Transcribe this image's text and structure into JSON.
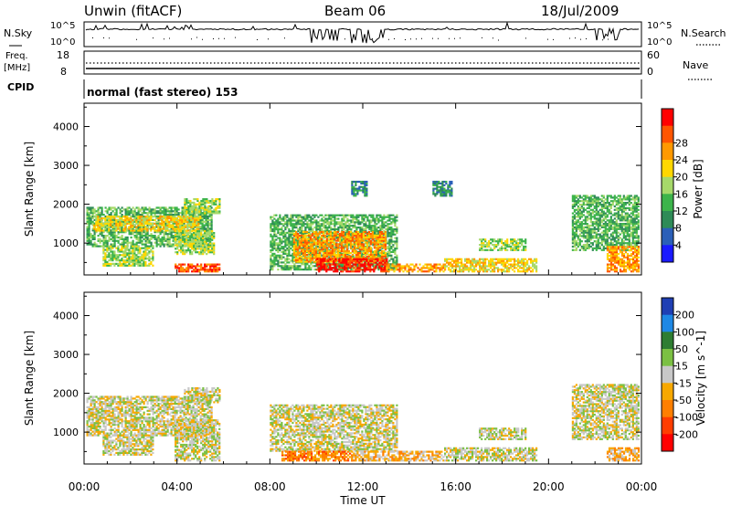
{
  "header": {
    "title": "Unwin (fitACF)",
    "beam": "Beam 06",
    "date": "18/Jul/2009"
  },
  "status_panels": {
    "nsky_label": "N.Sky",
    "nsearch_label": "N.Search",
    "noise_ticks_left": [
      "10^5",
      "10^0"
    ],
    "noise_ticks_right": [
      "10^5",
      "10^0"
    ],
    "freq_label": "Freq.",
    "freq_unit": "[MHz]",
    "freq_ticks": [
      "18",
      "8"
    ],
    "nave_label": "Nave",
    "nave_ticks": [
      "60",
      "0"
    ],
    "cpid_label": "CPID",
    "cpid_text": "normal (fast stereo) 153"
  },
  "chart_data": [
    {
      "type": "heatmap",
      "name": "power-panel",
      "ylabel": "Slant Range [km]",
      "ylim": [
        180,
        4600
      ],
      "yticks": [
        "1000",
        "2000",
        "3000",
        "4000"
      ],
      "ytick_values": [
        1000,
        2000,
        3000,
        4000
      ],
      "xlim": [
        0,
        24
      ],
      "colorbar": {
        "label": "Power [dB]",
        "ticks": [
          "4",
          "8",
          "12",
          "16",
          "20",
          "24",
          "28"
        ],
        "colors": [
          "#1a1aff",
          "#2b5fb8",
          "#2e8b57",
          "#3cb44b",
          "#a6d96a",
          "#ffd700",
          "#ff9900",
          "#ff5500",
          "#ff0000"
        ]
      },
      "regions": [
        {
          "t0": 0.1,
          "t1": 5.5,
          "r0": 900,
          "r1": 1900,
          "level": 3
        },
        {
          "t0": 0.4,
          "t1": 5.0,
          "r0": 1300,
          "r1": 1700,
          "level": 5
        },
        {
          "t0": 4.3,
          "t1": 5.8,
          "r0": 1750,
          "r1": 2150,
          "level": 4
        },
        {
          "t0": 0.8,
          "t1": 3.0,
          "r0": 400,
          "r1": 900,
          "level": 4
        },
        {
          "t0": 3.9,
          "t1": 5.6,
          "r0": 700,
          "r1": 1300,
          "level": 4
        },
        {
          "t0": 3.9,
          "t1": 5.8,
          "r0": 250,
          "r1": 450,
          "level": 7
        },
        {
          "t0": 8.0,
          "t1": 13.5,
          "r0": 300,
          "r1": 1700,
          "level": 3
        },
        {
          "t0": 9.0,
          "t1": 13.0,
          "r0": 500,
          "r1": 1300,
          "level": 6
        },
        {
          "t0": 10.0,
          "t1": 13.0,
          "r0": 250,
          "r1": 600,
          "level": 8
        },
        {
          "t0": 13.0,
          "t1": 15.5,
          "r0": 250,
          "r1": 450,
          "level": 6
        },
        {
          "t0": 15.5,
          "t1": 19.5,
          "r0": 250,
          "r1": 600,
          "level": 5
        },
        {
          "t0": 17.0,
          "t1": 19.0,
          "r0": 800,
          "r1": 1100,
          "level": 4
        },
        {
          "t0": 21.0,
          "t1": 23.9,
          "r0": 800,
          "r1": 2200,
          "level": 3
        },
        {
          "t0": 22.5,
          "t1": 23.9,
          "r0": 250,
          "r1": 900,
          "level": 6
        },
        {
          "t0": 11.5,
          "t1": 12.2,
          "r0": 2200,
          "r1": 2600,
          "level": 2
        },
        {
          "t0": 15.0,
          "t1": 15.8,
          "r0": 2200,
          "r1": 2600,
          "level": 2
        }
      ]
    },
    {
      "type": "heatmap",
      "name": "velocity-panel",
      "ylabel": "Slant Range [km]",
      "xlabel": "Time UT",
      "ylim": [
        180,
        4600
      ],
      "yticks": [
        "1000",
        "2000",
        "3000",
        "4000"
      ],
      "ytick_values": [
        1000,
        2000,
        3000,
        4000
      ],
      "xlim": [
        0,
        24
      ],
      "xticks": [
        "00:00",
        "04:00",
        "08:00",
        "12:00",
        "16:00",
        "20:00",
        "00:00"
      ],
      "xtick_values": [
        0,
        4,
        8,
        12,
        16,
        20,
        24
      ],
      "colorbar": {
        "label": "Velocity [m s^-1]",
        "ticks": [
          "200",
          "100",
          "50",
          "15",
          "-15",
          "-50",
          "-100",
          "-200"
        ],
        "colors": [
          "#1f3fb4",
          "#1e88e5",
          "#2e7d32",
          "#7bc043",
          "#c8c8c8",
          "#f7a800",
          "#ff7f00",
          "#ff3d00",
          "#ff0000"
        ]
      },
      "regions": [
        {
          "t0": 0.1,
          "t1": 5.5,
          "r0": 900,
          "r1": 1900,
          "level": 4
        },
        {
          "t0": 0.8,
          "t1": 3.0,
          "r0": 400,
          "r1": 900,
          "level": 4
        },
        {
          "t0": 3.9,
          "t1": 5.8,
          "r0": 250,
          "r1": 1300,
          "level": 4
        },
        {
          "t0": 4.3,
          "t1": 5.8,
          "r0": 1750,
          "r1": 2150,
          "level": 4
        },
        {
          "t0": 8.0,
          "t1": 13.5,
          "r0": 500,
          "r1": 1700,
          "level": 4
        },
        {
          "t0": 8.5,
          "t1": 11.5,
          "r0": 250,
          "r1": 500,
          "level": 6
        },
        {
          "t0": 11.5,
          "t1": 15.5,
          "r0": 250,
          "r1": 500,
          "level": 5
        },
        {
          "t0": 15.5,
          "t1": 19.5,
          "r0": 250,
          "r1": 600,
          "level": 4
        },
        {
          "t0": 17.0,
          "t1": 19.0,
          "r0": 800,
          "r1": 1100,
          "level": 4
        },
        {
          "t0": 21.0,
          "t1": 23.9,
          "r0": 800,
          "r1": 2200,
          "level": 4
        },
        {
          "t0": 22.5,
          "t1": 23.9,
          "r0": 250,
          "r1": 600,
          "level": 5
        }
      ]
    }
  ]
}
